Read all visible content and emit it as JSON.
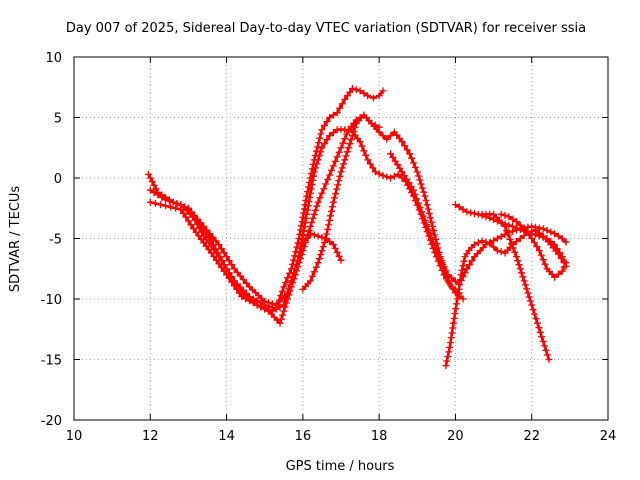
{
  "chart_data": {
    "type": "scatter",
    "title": "Day 007 of 2025, Sidereal Day-to-day VTEC variation (SDTVAR) for receiver ssia",
    "xlabel": "GPS time / hours",
    "ylabel": "SDTVAR / TECUs",
    "xlim": [
      10,
      24
    ],
    "ylim": [
      -20,
      10
    ],
    "xticks": [
      "10",
      "12",
      "14",
      "16",
      "18",
      "20",
      "22",
      "24"
    ],
    "yticks": [
      "-20",
      "-15",
      "-10",
      "-5",
      "0",
      "5",
      "10"
    ],
    "grid": true,
    "marker": "+",
    "color": "#ff0000",
    "series": [
      {
        "x": [
          11.95,
          12.2,
          12.6,
          13.0,
          13.4,
          13.8,
          14.2,
          14.6,
          15.0,
          15.3,
          15.5,
          15.7,
          15.9,
          16.1,
          16.3,
          16.5,
          16.7,
          16.9,
          17.1,
          17.3,
          17.5,
          17.7,
          17.85,
          18.0,
          18.1
        ],
        "y": [
          0.3,
          -1.2,
          -2.0,
          -2.5,
          -4.8,
          -6.5,
          -8.5,
          -9.8,
          -10.5,
          -10.8,
          -9.0,
          -7.5,
          -5.0,
          -1.5,
          1.5,
          4.0,
          5.0,
          5.4,
          6.5,
          7.4,
          7.2,
          6.8,
          6.6,
          6.8,
          7.2
        ]
      },
      {
        "x": [
          12.0,
          12.4,
          12.8,
          13.2,
          13.6,
          14.0,
          14.4,
          14.8,
          15.2,
          15.5,
          15.7,
          15.9,
          16.1,
          16.3,
          16.5,
          16.7,
          16.9,
          17.1,
          17.3,
          17.5,
          17.7,
          17.9,
          18.1,
          18.3,
          18.5,
          18.7,
          18.9,
          19.1,
          19.3,
          19.5,
          19.7,
          19.9,
          20.1
        ],
        "y": [
          -1.0,
          -1.8,
          -2.2,
          -3.5,
          -5.2,
          -7.5,
          -9.5,
          -10.5,
          -11.0,
          -10.5,
          -8.5,
          -6.5,
          -3.0,
          0.5,
          2.5,
          3.5,
          4.0,
          4.0,
          3.8,
          3.0,
          1.5,
          0.5,
          0.2,
          0.0,
          0.3,
          -0.3,
          -1.5,
          -3.0,
          -4.8,
          -6.5,
          -8.0,
          -9.0,
          -9.5
        ]
      },
      {
        "x": [
          12.0,
          12.4,
          12.8,
          13.2,
          13.6,
          14.0,
          14.4,
          14.8,
          15.1,
          15.4,
          15.6,
          15.8,
          16.0,
          16.2,
          16.4,
          16.6,
          16.8,
          17.0,
          17.2,
          17.4,
          17.6,
          17.8,
          18.0,
          18.2,
          18.4,
          18.6,
          18.8,
          19.0,
          19.2,
          19.4,
          19.6,
          19.8,
          20.0,
          20.2
        ],
        "y": [
          -2.0,
          -2.3,
          -2.6,
          -4.5,
          -6.2,
          -8.0,
          -9.8,
          -10.5,
          -11.0,
          -12.0,
          -10.0,
          -8.0,
          -6.0,
          -4.0,
          -2.0,
          -0.5,
          1.0,
          2.5,
          4.0,
          4.8,
          5.2,
          4.5,
          3.8,
          3.2,
          3.8,
          3.0,
          2.0,
          0.5,
          -1.5,
          -4.0,
          -6.5,
          -8.5,
          -9.5,
          -10.0
        ]
      },
      {
        "x": [
          13.0,
          13.4,
          13.8,
          14.2,
          14.6,
          15.0,
          15.3,
          15.6,
          15.8,
          16.0,
          16.2,
          16.4,
          16.6,
          16.8,
          17.0
        ],
        "y": [
          -2.5,
          -4.0,
          -5.5,
          -7.5,
          -9.0,
          -10.2,
          -10.5,
          -9.5,
          -7.5,
          -5.5,
          -4.6,
          -4.8,
          -5.0,
          -5.5,
          -6.8
        ]
      },
      {
        "x": [
          16.0,
          16.2,
          16.4,
          16.6,
          16.8,
          17.0,
          17.2,
          17.4,
          17.6,
          17.8,
          18.0
        ],
        "y": [
          -9.2,
          -8.5,
          -7.0,
          -5.0,
          -2.0,
          0.5,
          2.5,
          4.5,
          5.2,
          4.5,
          4.2
        ]
      },
      {
        "x": [
          18.3,
          18.6,
          18.9,
          19.2,
          19.5,
          19.8,
          20.1,
          20.3,
          20.5,
          20.8,
          21.1,
          21.4,
          21.7,
          22.0,
          22.3,
          22.6,
          22.8,
          22.9
        ],
        "y": [
          2.0,
          0.5,
          -1.0,
          -3.5,
          -6.0,
          -8.0,
          -8.8,
          -7.5,
          -6.5,
          -5.5,
          -5.0,
          -4.5,
          -4.2,
          -4.0,
          -4.2,
          -4.6,
          -5.0,
          -5.3
        ]
      },
      {
        "x": [
          19.75,
          19.85,
          19.95,
          20.05,
          20.15,
          20.25,
          20.35,
          20.5,
          20.7,
          20.9,
          21.1,
          21.3,
          21.5,
          21.7,
          21.9,
          22.1,
          22.3,
          22.5,
          22.7,
          22.85
        ],
        "y": [
          -15.5,
          -14.0,
          -12.0,
          -10.0,
          -8.0,
          -6.5,
          -6.0,
          -5.5,
          -5.2,
          -5.4,
          -6.0,
          -6.2,
          -5.5,
          -5.0,
          -4.5,
          -4.3,
          -4.8,
          -5.5,
          -6.3,
          -7.0
        ]
      },
      {
        "x": [
          20.0,
          20.3,
          20.6,
          20.9,
          21.2,
          21.5,
          21.8,
          22.0,
          22.2,
          22.4,
          22.6,
          22.8,
          22.9
        ],
        "y": [
          -2.2,
          -2.8,
          -3.0,
          -3.3,
          -3.7,
          -4.0,
          -4.4,
          -4.6,
          -4.8,
          -5.0,
          -5.5,
          -6.5,
          -7.3
        ]
      },
      {
        "x": [
          21.2,
          21.4,
          21.6,
          21.8,
          22.0,
          22.2,
          22.4,
          22.6,
          22.8,
          22.9
        ],
        "y": [
          -3.0,
          -3.2,
          -3.6,
          -4.2,
          -5.0,
          -6.0,
          -7.5,
          -8.2,
          -7.7,
          -7.0
        ]
      },
      {
        "x": [
          20.7,
          21.0,
          21.3,
          21.6,
          21.8,
          22.0,
          22.15,
          22.3,
          22.45
        ],
        "y": [
          -3.0,
          -3.0,
          -4.0,
          -6.5,
          -8.5,
          -10.5,
          -12.0,
          -13.5,
          -15.0
        ]
      }
    ]
  }
}
